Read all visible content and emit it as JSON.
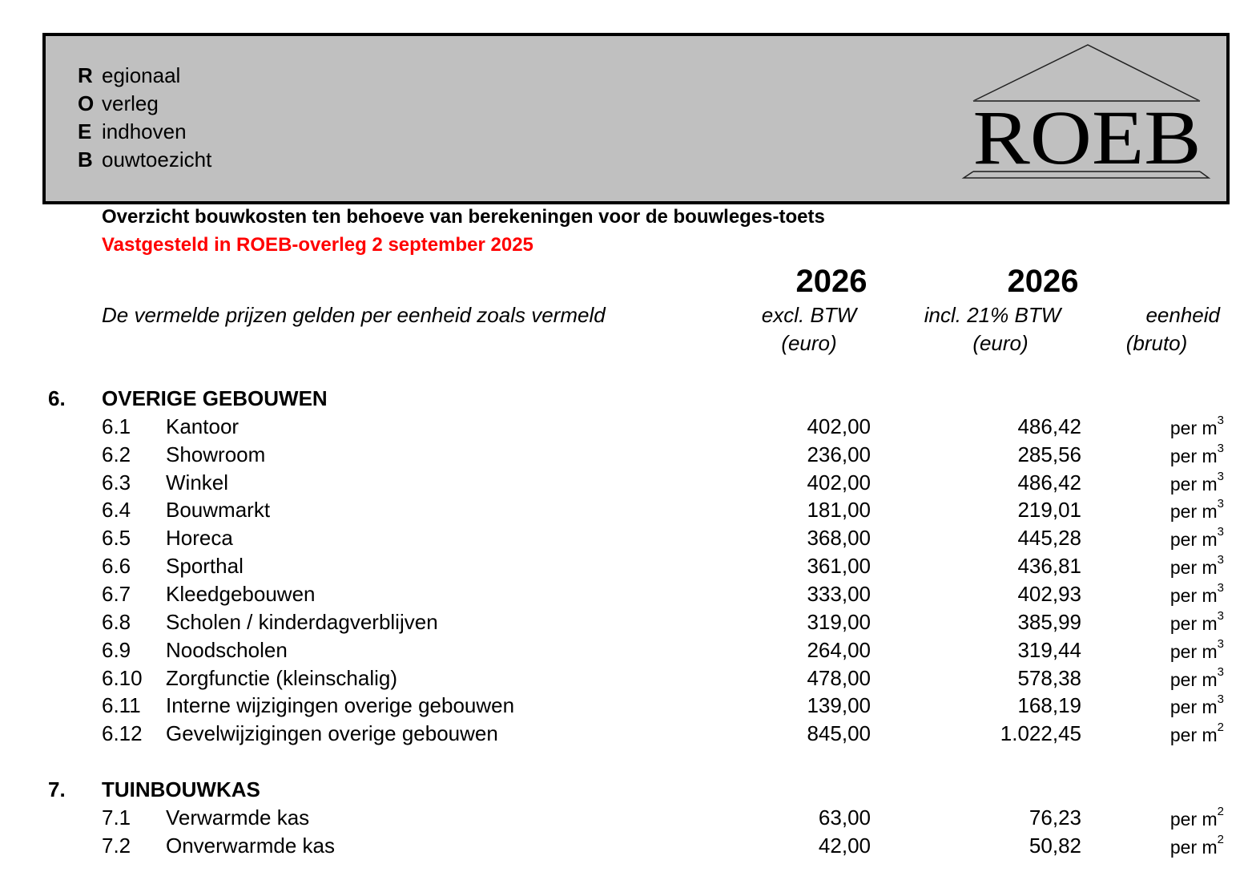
{
  "header": {
    "acronym": [
      {
        "letter": "R",
        "rest": "egionaal"
      },
      {
        "letter": "O",
        "rest": "verleg"
      },
      {
        "letter": "E",
        "rest": "indhoven"
      },
      {
        "letter": "B",
        "rest": "ouwtoezicht"
      }
    ],
    "logo_text": "ROEB"
  },
  "title": "Overzicht bouwkosten ten behoeve van berekeningen voor de bouwleges-toets",
  "subtitle": "Vastgesteld in ROEB-overleg 2 september 2025",
  "subtitle_color": "#ff0000",
  "columns": {
    "note": "De vermelde prijzen gelden per eenheid zoals vermeld",
    "excl": {
      "year": "2026",
      "label": "excl. BTW",
      "unit": "(euro)"
    },
    "incl": {
      "year": "2026",
      "label": "incl. 21% BTW",
      "unit": "(euro)"
    },
    "eenheid": {
      "label": "eenheid",
      "unit": "(bruto)"
    }
  },
  "sections": [
    {
      "number": "6.",
      "title": "OVERIGE GEBOUWEN",
      "rows": [
        {
          "code": "6.1",
          "name": "Kantoor",
          "excl": "402,00",
          "incl": "486,42",
          "unit": "per m",
          "exp": "3"
        },
        {
          "code": "6.2",
          "name": "Showroom",
          "excl": "236,00",
          "incl": "285,56",
          "unit": "per m",
          "exp": "3"
        },
        {
          "code": "6.3",
          "name": "Winkel",
          "excl": "402,00",
          "incl": "486,42",
          "unit": "per m",
          "exp": "3"
        },
        {
          "code": "6.4",
          "name": "Bouwmarkt",
          "excl": "181,00",
          "incl": "219,01",
          "unit": "per m",
          "exp": "3"
        },
        {
          "code": "6.5",
          "name": "Horeca",
          "excl": "368,00",
          "incl": "445,28",
          "unit": "per m",
          "exp": "3"
        },
        {
          "code": "6.6",
          "name": "Sporthal",
          "excl": "361,00",
          "incl": "436,81",
          "unit": "per m",
          "exp": "3"
        },
        {
          "code": "6.7",
          "name": "Kleedgebouwen",
          "excl": "333,00",
          "incl": "402,93",
          "unit": "per m",
          "exp": "3"
        },
        {
          "code": "6.8",
          "name": "Scholen / kinderdagverblijven",
          "excl": "319,00",
          "incl": "385,99",
          "unit": "per m",
          "exp": "3"
        },
        {
          "code": "6.9",
          "name": "Noodscholen",
          "excl": "264,00",
          "incl": "319,44",
          "unit": "per m",
          "exp": "3"
        },
        {
          "code": "6.10",
          "name": "Zorgfunctie (kleinschalig)",
          "excl": "478,00",
          "incl": "578,38",
          "unit": "per m",
          "exp": "3"
        },
        {
          "code": "6.11",
          "name": "Interne wijzigingen overige gebouwen",
          "excl": "139,00",
          "incl": "168,19",
          "unit": "per m",
          "exp": "3"
        },
        {
          "code": "6.12",
          "name": "Gevelwijzigingen overige gebouwen",
          "excl": "845,00",
          "incl": "1.022,45",
          "unit": "per m",
          "exp": "2"
        }
      ]
    },
    {
      "number": "7.",
      "title": "TUINBOUWKAS",
      "rows": [
        {
          "code": "7.1",
          "name": "Verwarmde kas",
          "excl": "63,00",
          "incl": "76,23",
          "unit": "per m",
          "exp": "2"
        },
        {
          "code": "7.2",
          "name": "Onverwarmde kas",
          "excl": "42,00",
          "incl": "50,82",
          "unit": "per m",
          "exp": "2"
        }
      ]
    }
  ]
}
